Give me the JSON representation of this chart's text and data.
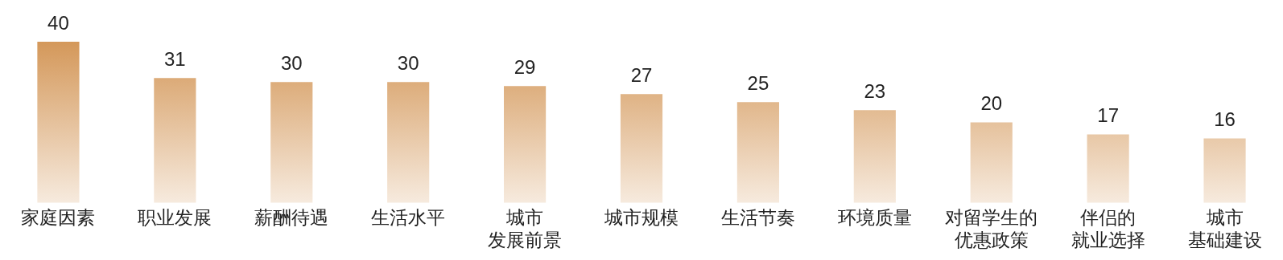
{
  "chart_data": {
    "type": "bar",
    "categories": [
      "家庭因素",
      "职业发展",
      "薪酬待遇",
      "生活水平",
      "城市发展前景",
      "城市规模",
      "生活节奏",
      "环境质量",
      "对留学生的优惠政策",
      "伴侣的就业选择",
      "城市基础建设"
    ],
    "values": [
      40,
      31,
      30,
      30,
      29,
      27,
      25,
      23,
      20,
      17,
      16
    ],
    "color": "#d4985a",
    "data_labels": true,
    "grid": false,
    "legend": false
  }
}
